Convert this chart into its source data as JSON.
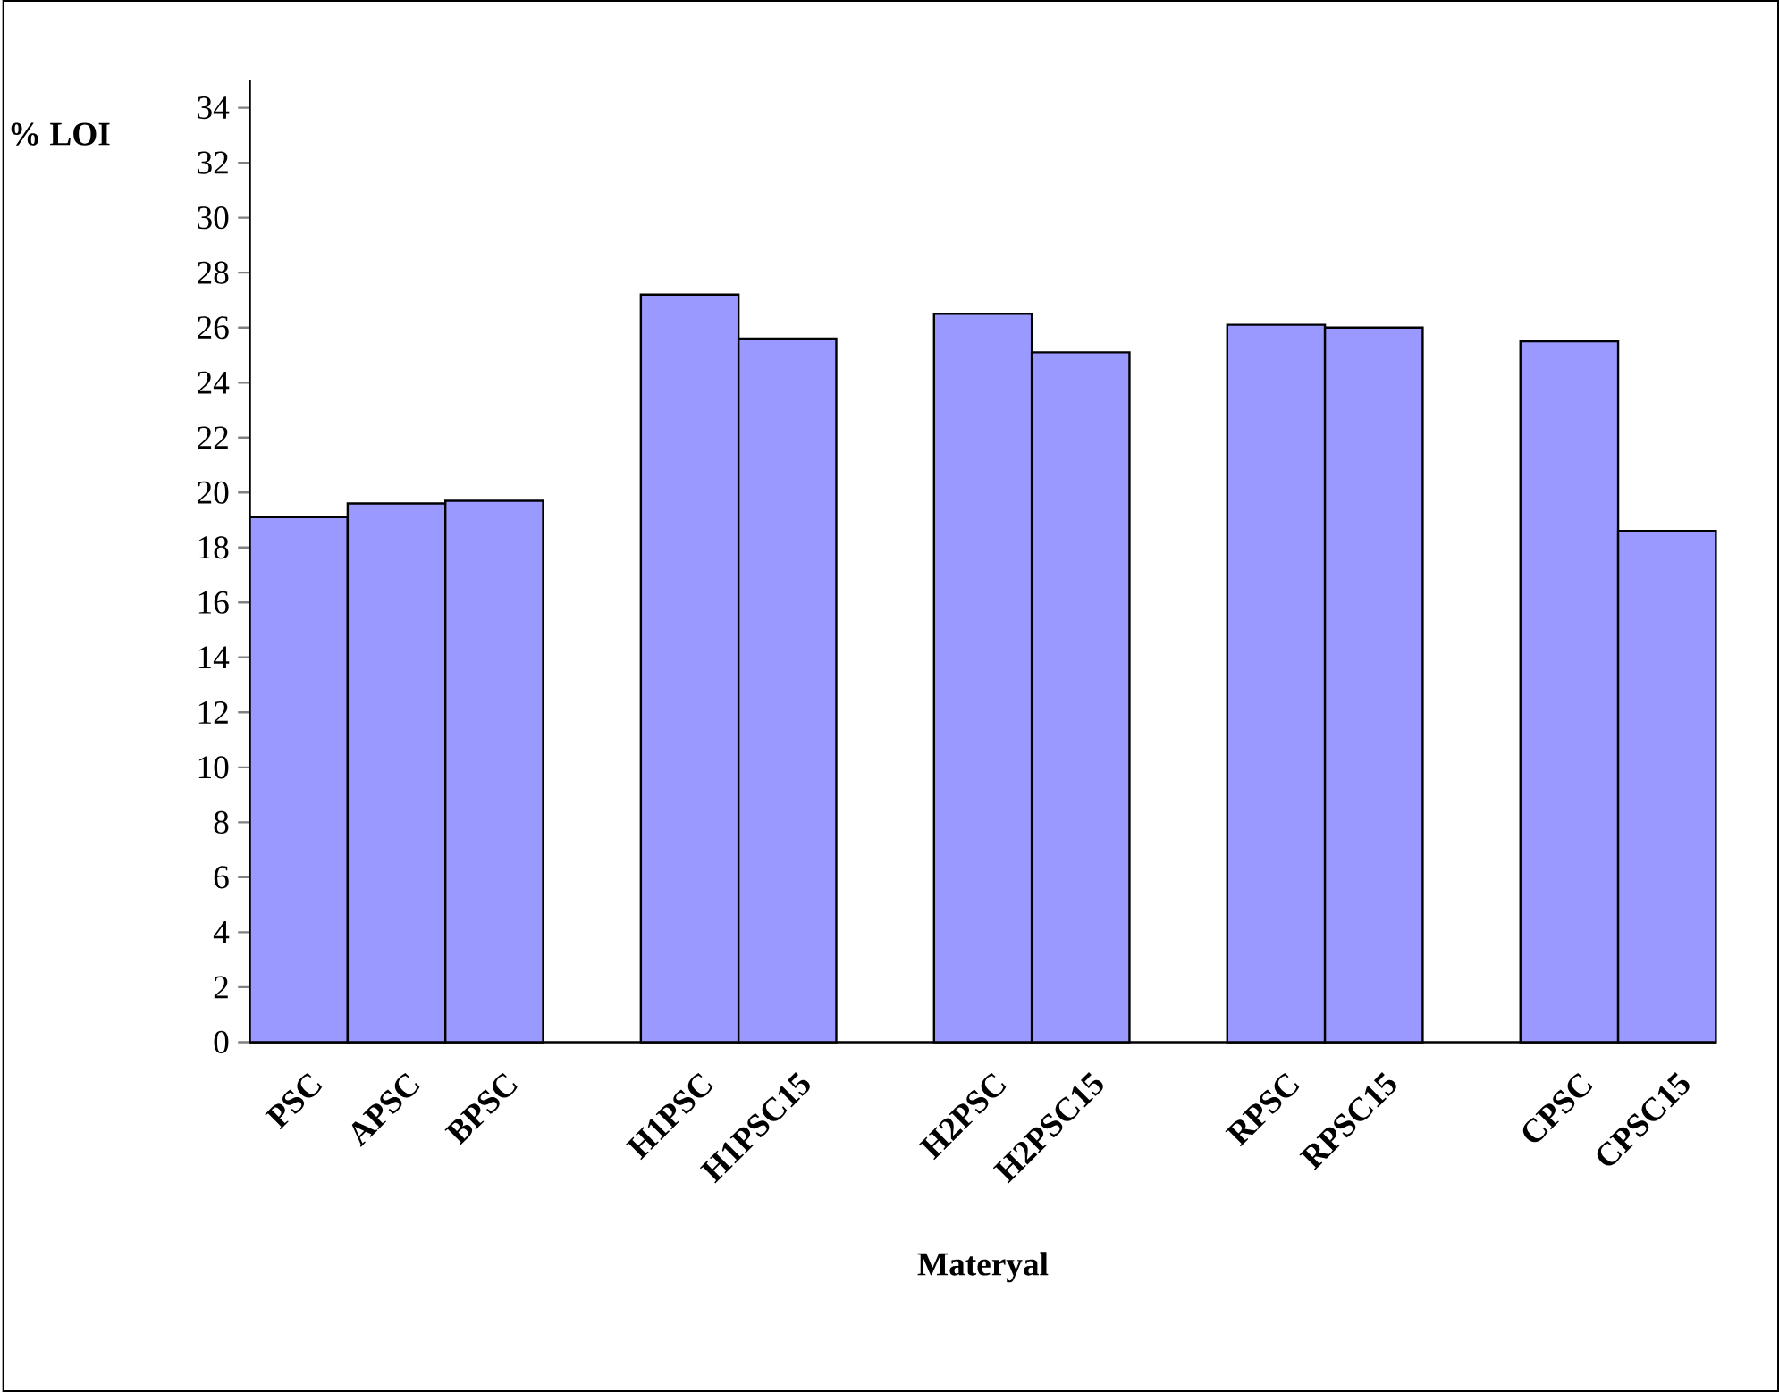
{
  "chart_data": {
    "type": "bar",
    "xlabel": "Materyal",
    "ylabel": "% LOI",
    "categories": [
      "PSC",
      "APSC",
      "BPSC",
      null,
      "H1PSC",
      "H1PSC15",
      null,
      "H2PSC",
      "H2PSC15",
      null,
      "RPSC",
      "RPSC15",
      null,
      "CPSC",
      "CPSC15"
    ],
    "values": [
      19.1,
      19.6,
      19.7,
      null,
      27.2,
      25.6,
      null,
      26.5,
      25.1,
      null,
      26.1,
      26.0,
      null,
      25.5,
      18.6
    ],
    "color": "#9999ff",
    "ylim": [
      0,
      35
    ],
    "yticks": [
      0,
      2,
      4,
      6,
      8,
      10,
      12,
      14,
      16,
      18,
      20,
      22,
      24,
      26,
      28,
      30,
      32,
      34
    ]
  }
}
